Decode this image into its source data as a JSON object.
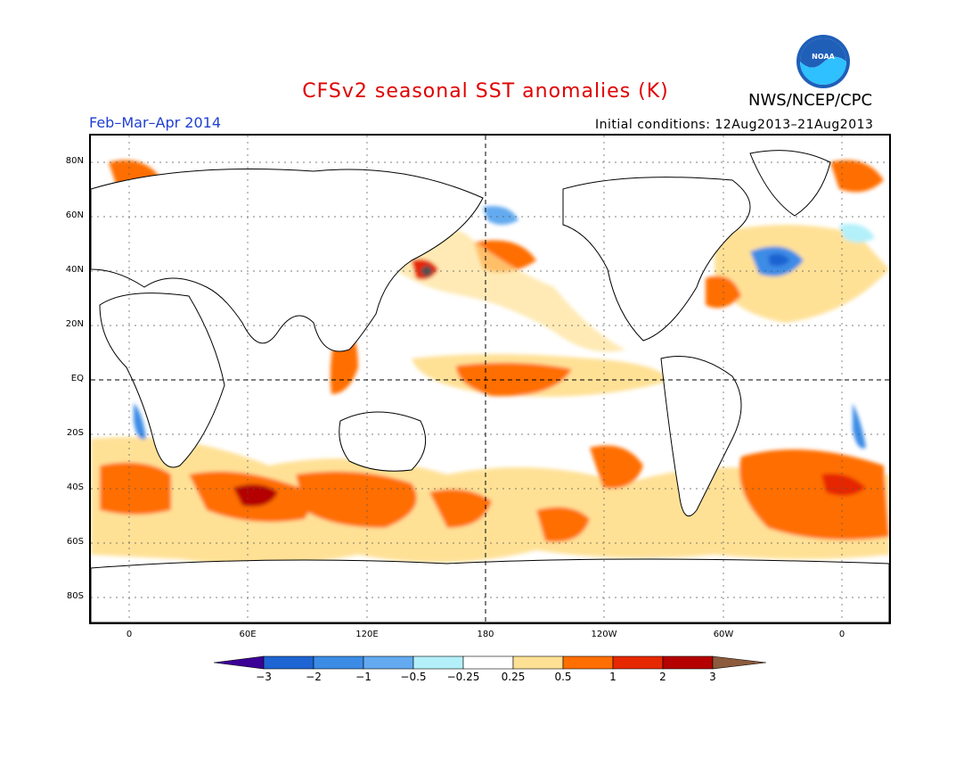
{
  "title": "CFSv2 seasonal SST anomalies (K)",
  "agency": "NWS/NCEP/CPC",
  "logo_text": "NOAA",
  "period": "Feb–Mar–Apr 2014",
  "initial_conditions": "Initial conditions: 12Aug2013–21Aug2013",
  "lat_labels": [
    "80N",
    "60N",
    "40N",
    "20N",
    "EQ",
    "20S",
    "40S",
    "60S",
    "80S"
  ],
  "lon_labels": [
    "0",
    "60E",
    "120E",
    "180",
    "120W",
    "60W",
    "0"
  ],
  "colorbar": {
    "labels": [
      "−3",
      "−2",
      "−1",
      "−0.5",
      "−0.25",
      "0.25",
      "0.5",
      "1",
      "2",
      "3"
    ],
    "colors": [
      "#3c0096",
      "#1e64d2",
      "#3c8ce6",
      "#64aaf0",
      "#b4f0fa",
      "#ffffff",
      "#ffe196",
      "#ff6e00",
      "#e62800",
      "#b40000",
      "#8c5a3c"
    ]
  }
}
